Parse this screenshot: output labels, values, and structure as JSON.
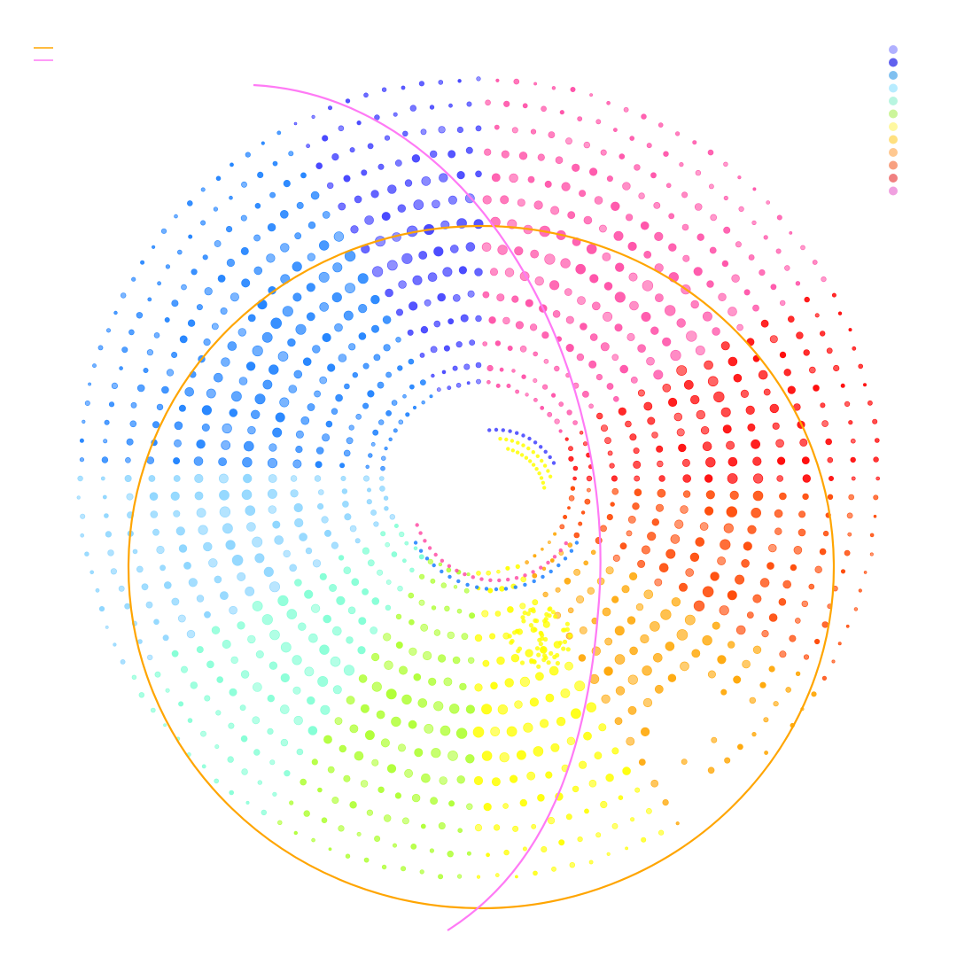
{
  "chart_data": {
    "type": "scatter",
    "coordinate_system": "polar",
    "title": "",
    "xlabel": "",
    "ylabel": "",
    "grid": false,
    "rings": [
      12,
      14,
      17,
      20,
      23,
      26,
      29,
      32,
      35,
      38,
      41,
      44,
      47,
      50
    ],
    "spokes_per_ring": [
      60,
      60,
      66,
      72,
      78,
      84,
      90,
      96,
      102,
      108,
      114,
      120,
      126,
      132
    ],
    "color_sectors": [
      {
        "start_deg": 0,
        "end_deg": 30,
        "color": "#ff0000"
      },
      {
        "start_deg": 30,
        "end_deg": 60,
        "color": "#ff4da6"
      },
      {
        "start_deg": 60,
        "end_deg": 90,
        "color": "#ff4da6"
      },
      {
        "start_deg": 90,
        "end_deg": 120,
        "color": "#4040ff"
      },
      {
        "start_deg": 120,
        "end_deg": 150,
        "color": "#1a7fff"
      },
      {
        "start_deg": 150,
        "end_deg": 180,
        "color": "#1a7fff"
      },
      {
        "start_deg": 180,
        "end_deg": 210,
        "color": "#88d4ff"
      },
      {
        "start_deg": 210,
        "end_deg": 240,
        "color": "#7fffd4"
      },
      {
        "start_deg": 240,
        "end_deg": 270,
        "color": "#adff2f"
      },
      {
        "start_deg": 270,
        "end_deg": 300,
        "color": "#ffff00"
      },
      {
        "start_deg": 300,
        "end_deg": 330,
        "color": "#ffa500"
      },
      {
        "start_deg": 330,
        "end_deg": 360,
        "color": "#ff4500"
      }
    ],
    "inner_arc_colors": [
      "#ff4da6",
      "#ffff00",
      "#4040ff",
      "#1a7fff"
    ],
    "curves": [
      {
        "label": "",
        "color": "#ffa500",
        "shape": "circle"
      },
      {
        "label": "",
        "color": "#ff7af5",
        "shape": "arc"
      }
    ],
    "legend": {
      "placement": "top-right",
      "swatches": [
        "#b0b0ff",
        "#6060ee",
        "#80c0f0",
        "#b8ecff",
        "#b8f5e0",
        "#ccf59a",
        "#fff8a0",
        "#ffe080",
        "#ffc890",
        "#f8a080",
        "#f08080",
        "#f0a0e0"
      ]
    },
    "line_legend": {
      "placement": "top-left",
      "entries": [
        {
          "color": "#ffa500",
          "label": ""
        },
        {
          "color": "#ff7af5",
          "label": ""
        }
      ]
    }
  }
}
